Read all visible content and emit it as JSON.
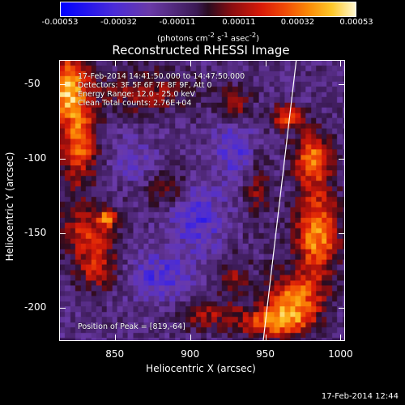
{
  "colorbar": {
    "ticks": [
      "-0.00053",
      "-0.00032",
      "-0.00011",
      "0.00011",
      "0.00032",
      "0.00053"
    ],
    "tick_values": [
      -0.00053,
      -0.00032,
      -0.00011,
      0.00011,
      0.00032,
      0.00053
    ],
    "unit_html": "(photons cm<sup>-2</sup> s<sup>-1</sup> asec<sup>-2</sup>)",
    "colors": [
      "#0000ff",
      "#6a3aa8",
      "#2a0c20",
      "#d81a08",
      "#fb8a06",
      "#fff8d0"
    ]
  },
  "annotations": {
    "time_range": "17-Feb-2014 14:41:50.000 to 14:47:50.000",
    "detectors": "Detectors: 3F 5F 6F 7F 8F 9F, Att 0",
    "energy": "Energy Range: 12.0 - 25.0 keV",
    "method": "Clean    Total counts: 2.76E+04",
    "peak": "Position of Peak = [819,-64]"
  },
  "timestamp": "17-Feb-2014 12:44",
  "chart_data": {
    "type": "heatmap",
    "title": "Reconstructed RHESSI Image",
    "xlabel": "Heliocentric X (arcsec)",
    "ylabel": "Heliocentric Y (arcsec)",
    "xlim": [
      813,
      1003
    ],
    "ylim": [
      -222,
      -34
    ],
    "x_ticks": [
      850,
      900,
      950,
      1000
    ],
    "y_ticks": [
      -50,
      -100,
      -150,
      -200
    ],
    "zlim": [
      -0.00053,
      0.00053
    ],
    "peak": [
      819,
      -64
    ],
    "limb_line": [
      [
        970,
        -34
      ],
      [
        948,
        -222
      ]
    ],
    "blobs": [
      {
        "x": 818,
        "y": -52,
        "value": 0.00053,
        "rx": 14,
        "ry": 22
      },
      {
        "x": 826,
        "y": -90,
        "value": 0.0004,
        "rx": 12,
        "ry": 28
      },
      {
        "x": 832,
        "y": -150,
        "value": 0.0003,
        "rx": 18,
        "ry": 18
      },
      {
        "x": 845,
        "y": -140,
        "value": 0.00045,
        "rx": 5,
        "ry": 5
      },
      {
        "x": 838,
        "y": -175,
        "value": 0.00025,
        "rx": 14,
        "ry": 14
      },
      {
        "x": 870,
        "y": -55,
        "value": 0.00022,
        "rx": 30,
        "ry": 14
      },
      {
        "x": 885,
        "y": -120,
        "value": 0.0002,
        "rx": 12,
        "ry": 12
      },
      {
        "x": 930,
        "y": -62,
        "value": 0.00025,
        "rx": 10,
        "ry": 10
      },
      {
        "x": 945,
        "y": -120,
        "value": 0.00018,
        "rx": 8,
        "ry": 25
      },
      {
        "x": 965,
        "y": -72,
        "value": 0.00035,
        "rx": 10,
        "ry": 8
      },
      {
        "x": 982,
        "y": -100,
        "value": 0.00045,
        "rx": 12,
        "ry": 18
      },
      {
        "x": 985,
        "y": -150,
        "value": 0.0005,
        "rx": 14,
        "ry": 28
      },
      {
        "x": 970,
        "y": -195,
        "value": 0.00045,
        "rx": 18,
        "ry": 18
      },
      {
        "x": 955,
        "y": -210,
        "value": 0.0004,
        "rx": 22,
        "ry": 10
      },
      {
        "x": 910,
        "y": -205,
        "value": 0.00022,
        "rx": 20,
        "ry": 10
      },
      {
        "x": 930,
        "y": -180,
        "value": 0.0002,
        "rx": 10,
        "ry": 14
      },
      {
        "x": 880,
        "y": -180,
        "value": -0.0002,
        "rx": 22,
        "ry": 18
      },
      {
        "x": 905,
        "y": -140,
        "value": -0.00022,
        "rx": 18,
        "ry": 22
      },
      {
        "x": 930,
        "y": -95,
        "value": -0.0002,
        "rx": 14,
        "ry": 18
      },
      {
        "x": 862,
        "y": -100,
        "value": -0.00015,
        "rx": 14,
        "ry": 14
      }
    ]
  }
}
